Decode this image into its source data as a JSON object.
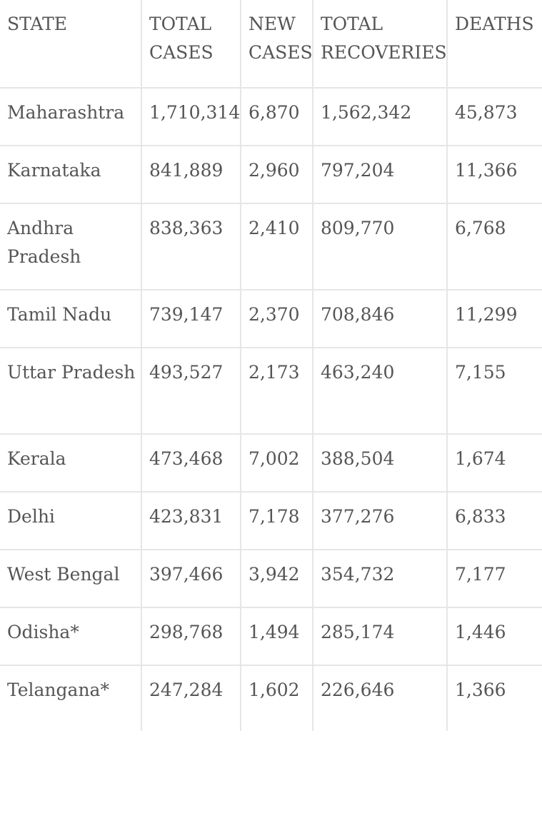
{
  "table": {
    "headers": {
      "state": "STATE",
      "total_cases": "TOTAL CASES",
      "new_cases": "NEW CASES",
      "total_recoveries": "TOTAL RECOVERIES",
      "deaths": "DEATHS"
    },
    "rows": [
      {
        "state": "Maharashtra",
        "total_cases": "1,710,314",
        "new_cases": "6,870",
        "total_recoveries": "1,562,342",
        "deaths": "45,873"
      },
      {
        "state": "Karnataka",
        "total_cases": "841,889",
        "new_cases": "2,960",
        "total_recoveries": "797,204",
        "deaths": "11,366"
      },
      {
        "state": "Andhra Pradesh",
        "total_cases": "838,363",
        "new_cases": "2,410",
        "total_recoveries": "809,770",
        "deaths": "6,768"
      },
      {
        "state": "Tamil Nadu",
        "total_cases": "739,147",
        "new_cases": "2,370",
        "total_recoveries": "708,846",
        "deaths": "11,299"
      },
      {
        "state": "Uttar Pradesh",
        "total_cases": "493,527",
        "new_cases": "2,173",
        "total_recoveries": "463,240",
        "deaths": "7,155"
      },
      {
        "state": "Kerala",
        "total_cases": "473,468",
        "new_cases": "7,002",
        "total_recoveries": "388,504",
        "deaths": "1,674"
      },
      {
        "state": "Delhi",
        "total_cases": "423,831",
        "new_cases": "7,178",
        "total_recoveries": "377,276",
        "deaths": "6,833"
      },
      {
        "state": "West Bengal",
        "total_cases": "397,466",
        "new_cases": "3,942",
        "total_recoveries": "354,732",
        "deaths": "7,177"
      },
      {
        "state": "Odisha*",
        "total_cases": "298,768",
        "new_cases": "1,494",
        "total_recoveries": "285,174",
        "deaths": "1,446"
      },
      {
        "state": "Telangana*",
        "total_cases": "247,284",
        "new_cases": "1,602",
        "total_recoveries": "226,646",
        "deaths": "1,366"
      }
    ]
  }
}
